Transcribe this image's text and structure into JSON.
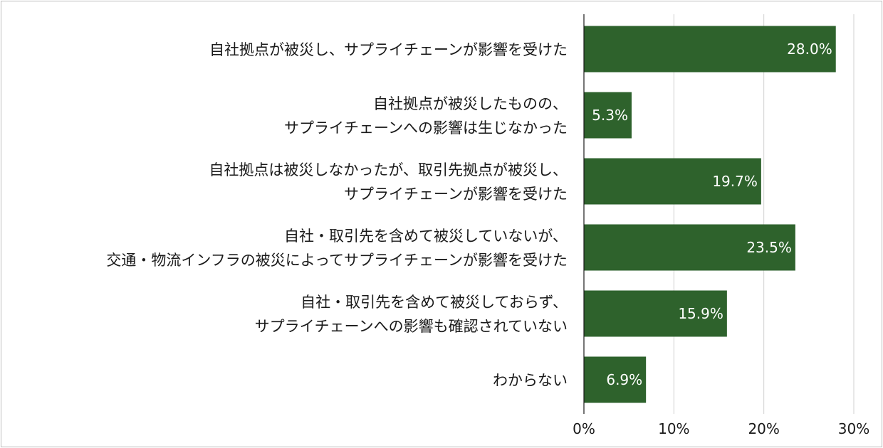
{
  "chart_data": {
    "type": "bar",
    "orientation": "horizontal",
    "categories": [
      [
        "自社拠点が被災し、サプライチェーンが影響を受けた"
      ],
      [
        "自社拠点が被災したものの、",
        "サプライチェーンへの影響は生じなかった"
      ],
      [
        "自社拠点は被災しなかったが、取引先拠点が被災し、",
        "サプライチェーンが影響を受けた"
      ],
      [
        "自社・取引先を含めて被災していないが、",
        "交通・物流インフラの被災によってサプライチェーンが影響を受けた"
      ],
      [
        "自社・取引先を含めて被災しておらず、",
        "サプライチェーンへの影響も確認されていない"
      ],
      [
        "わからない"
      ]
    ],
    "values": [
      28.0,
      5.3,
      19.7,
      23.5,
      15.9,
      6.9
    ],
    "data_labels": [
      "28.0%",
      "5.3%",
      "19.7%",
      "23.5%",
      "15.9%",
      "6.9%"
    ],
    "xlim": [
      0,
      30
    ],
    "xticks": [
      0,
      10,
      20,
      30
    ],
    "xtick_labels": [
      "0%",
      "10%",
      "20%",
      "30%"
    ],
    "grid": true,
    "bar_color": "#2e622c",
    "grid_color": "#d0d0d0",
    "title": "",
    "xlabel": "",
    "ylabel": ""
  }
}
